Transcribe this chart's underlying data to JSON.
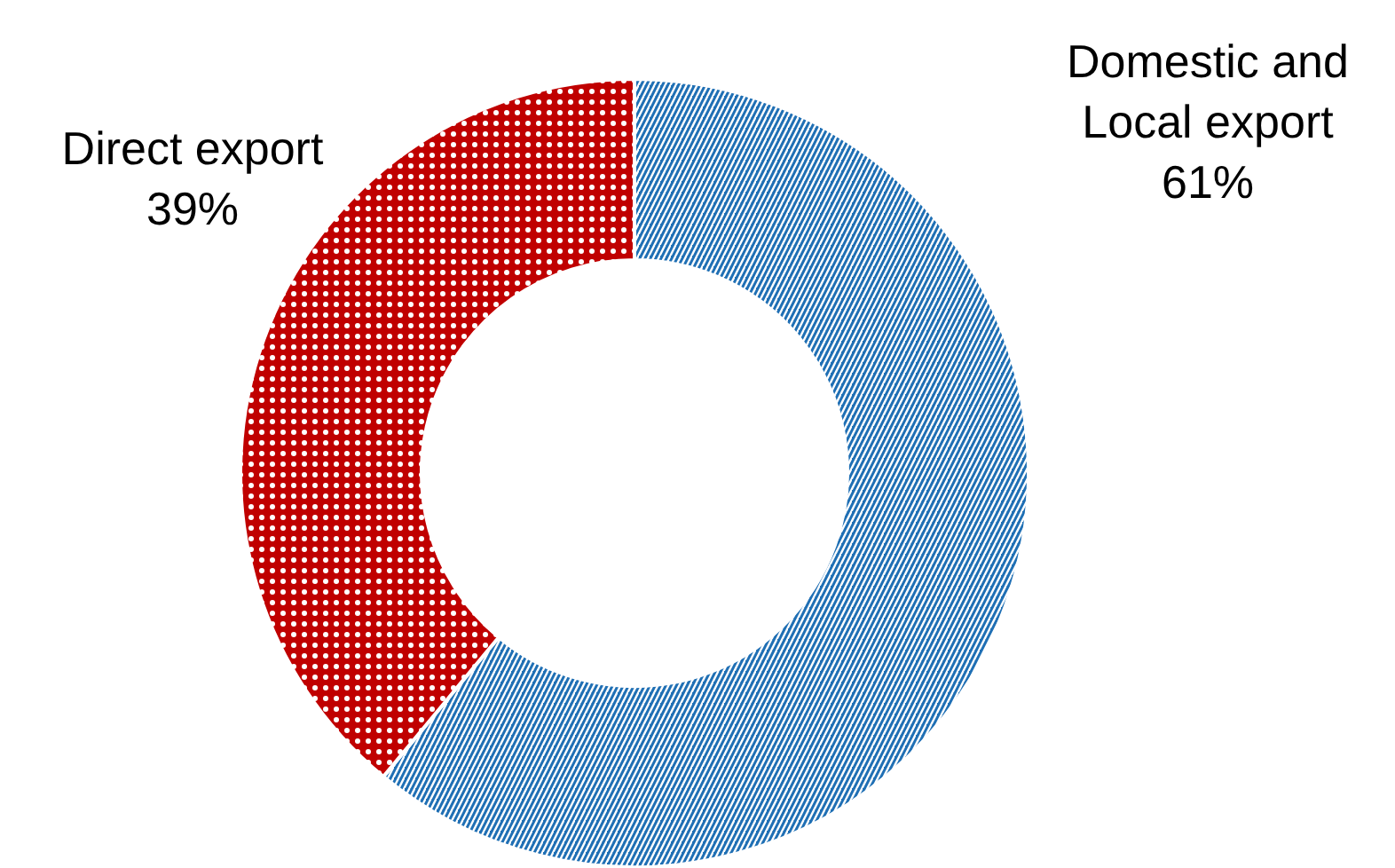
{
  "chart_data": {
    "type": "donut",
    "categories": [
      "Domestic and Local export",
      "Direct export"
    ],
    "values": [
      61,
      39
    ],
    "value_labels": [
      "61%",
      "39%"
    ],
    "colors": [
      "#1f6fb4",
      "#c00000"
    ]
  }
}
